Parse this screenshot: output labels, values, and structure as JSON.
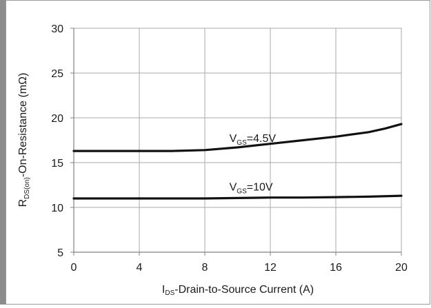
{
  "chart_data": {
    "type": "line",
    "title": "",
    "xlabel": {
      "main": "I",
      "sub": "DS",
      "rest": "-Drain-to-Source Current (A)"
    },
    "ylabel": {
      "main": "R",
      "sub": "DS(on)",
      "rest": "-On-Resistance  (mΩ)"
    },
    "xlim": [
      0,
      20
    ],
    "ylim": [
      5,
      30
    ],
    "xticks": [
      0,
      4,
      8,
      12,
      16,
      20
    ],
    "yticks": [
      5,
      10,
      15,
      20,
      25,
      30
    ],
    "grid": true,
    "series": [
      {
        "name": {
          "main": "V",
          "sub": "GS",
          "rest": "=4.5V"
        },
        "label_at": [
          9.5,
          17.3
        ],
        "color": "#111111",
        "x": [
          0,
          2,
          4,
          6,
          8,
          10,
          12,
          14,
          16,
          18,
          19,
          20
        ],
        "y": [
          16.3,
          16.3,
          16.3,
          16.3,
          16.4,
          16.7,
          17.1,
          17.5,
          17.9,
          18.4,
          18.8,
          19.3
        ]
      },
      {
        "name": {
          "main": "V",
          "sub": "GS",
          "rest": "=10V"
        },
        "label_at": [
          9.5,
          11.9
        ],
        "color": "#111111",
        "x": [
          0,
          2,
          4,
          6,
          8,
          10,
          12,
          14,
          16,
          18,
          20
        ],
        "y": [
          11.0,
          11.0,
          11.0,
          11.0,
          11.0,
          11.05,
          11.1,
          11.1,
          11.15,
          11.2,
          11.3
        ]
      }
    ]
  }
}
